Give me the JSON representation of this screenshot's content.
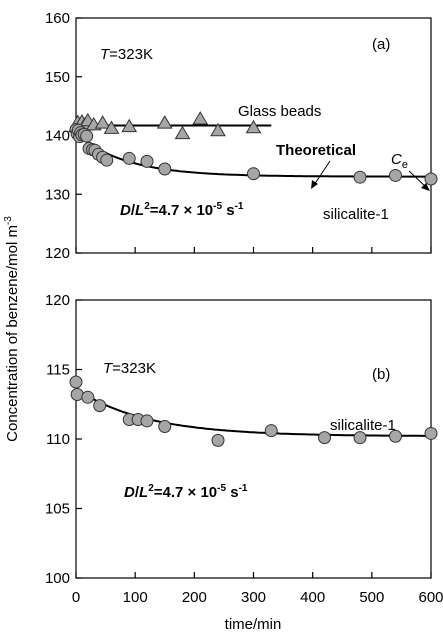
{
  "chart_data": [
    {
      "type": "scatter",
      "panel_label": "(a)",
      "xlabel": "time/min",
      "ylabel": "Concentration of benzene/mol m",
      "ylabel_sup": "-3",
      "xlim": [
        0,
        600
      ],
      "ylim": [
        120,
        160
      ],
      "xticks": [
        "0",
        "100",
        "200",
        "300",
        "400",
        "500",
        "600"
      ],
      "yticks": [
        "120",
        "130",
        "140",
        "150",
        "160"
      ],
      "annotations": {
        "temperature_var": "T",
        "temperature_val": "=323K",
        "glass_label": "Glass beads",
        "theoretical_label": "Theoretical",
        "ce_var": "C",
        "ce_sub": "e",
        "silicalite_label": "silicalite-1",
        "dl_var_d": "D",
        "dl_slash": "/",
        "dl_var_l": "L",
        "dl_sup": "2",
        "dl_value": "=4.7 × 10",
        "dl_exp": "-5",
        "dl_unit": " s",
        "dl_unit_exp": "-1"
      },
      "series": [
        {
          "name": "Glass beads",
          "marker": "triangle",
          "x": [
            0,
            3,
            6,
            10,
            15,
            20,
            30,
            45,
            60,
            90,
            150,
            180,
            210,
            240,
            300
          ],
          "y": [
            141.5,
            142.2,
            141.5,
            142.3,
            141.8,
            142.5,
            141.8,
            142.1,
            141.2,
            141.5,
            142.1,
            140.3,
            142.8,
            140.8,
            141.3
          ]
        },
        {
          "name": "silicalite-1",
          "marker": "circle",
          "x": [
            0,
            2,
            4,
            6,
            8,
            10,
            14,
            18,
            22,
            28,
            32,
            38,
            45,
            52,
            90,
            120,
            150,
            300,
            480,
            540,
            600
          ],
          "y": [
            141,
            140.3,
            140.9,
            139.8,
            140.5,
            140.1,
            140.2,
            139.9,
            137.8,
            137.6,
            137.5,
            136.8,
            136.3,
            135.8,
            136.1,
            135.6,
            134.3,
            133.5,
            132.9,
            133.2,
            132.6
          ]
        }
      ],
      "lines": [
        {
          "name": "glass-fit",
          "x": [
            0,
            330
          ],
          "y": [
            141.7,
            141.7
          ]
        },
        {
          "name": "theoretical",
          "x0": 0,
          "x1": 600,
          "c_inf": 133.0,
          "c0": 140.3,
          "tau": 85
        }
      ]
    },
    {
      "type": "scatter",
      "panel_label": "(b)",
      "xlabel": "time/min",
      "xlim": [
        0,
        600
      ],
      "ylim": [
        100,
        120
      ],
      "xticks": [
        "0",
        "100",
        "200",
        "300",
        "400",
        "500",
        "600"
      ],
      "yticks": [
        "100",
        "105",
        "110",
        "115",
        "120"
      ],
      "annotations": {
        "temperature_var": "T",
        "temperature_val": "=323K",
        "silicalite_label": "silicalite-1",
        "dl_var_d": "D",
        "dl_slash": "/",
        "dl_var_l": "L",
        "dl_sup": "2",
        "dl_value": "=4.7 × 10",
        "dl_exp": "-5",
        "dl_unit": " s",
        "dl_unit_exp": "-1"
      },
      "series": [
        {
          "name": "silicalite-1",
          "marker": "circle",
          "x": [
            0,
            2,
            20,
            40,
            90,
            105,
            120,
            150,
            240,
            330,
            420,
            480,
            540,
            600
          ],
          "y": [
            114.1,
            113.2,
            113.0,
            112.4,
            111.4,
            111.4,
            111.3,
            110.9,
            109.9,
            110.6,
            110.1,
            110.1,
            110.2,
            110.4
          ]
        }
      ],
      "lines": [
        {
          "name": "theoretical",
          "x0": 0,
          "x1": 600,
          "c_inf": 110.2,
          "c0": 113.6,
          "tau": 120
        }
      ]
    }
  ]
}
